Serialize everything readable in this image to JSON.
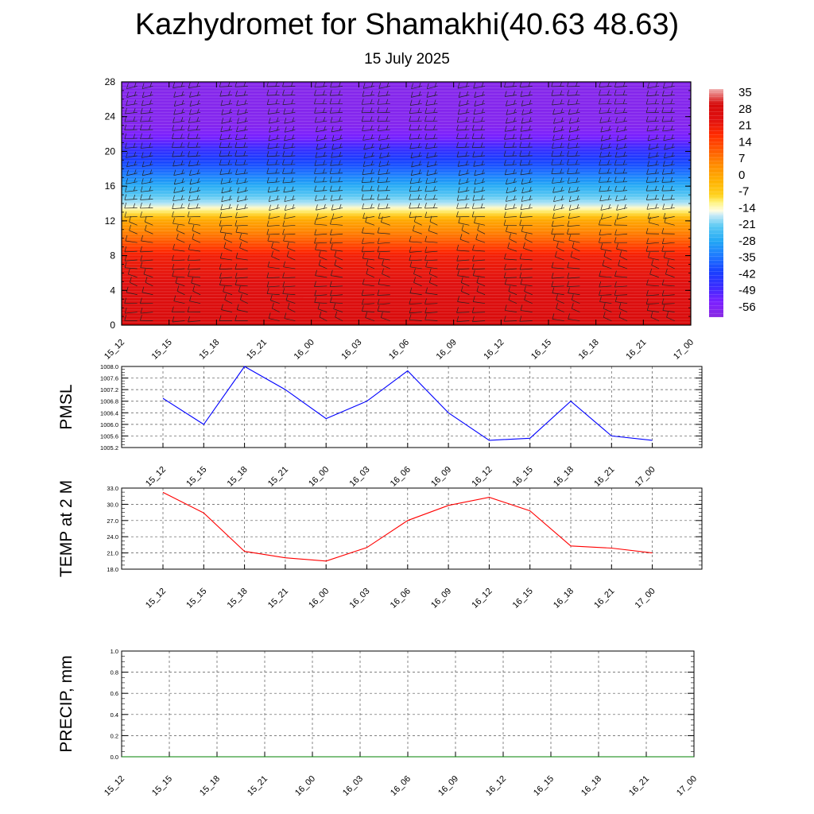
{
  "header": {
    "title": "Kazhydromet for Shamakhi(40.63 48.63)",
    "subtitle": "15 July 2025"
  },
  "chart_data": [
    {
      "id": "vertical-profile",
      "type": "heatmap",
      "title": "",
      "xlabel": "",
      "ylabel": "",
      "x_tick_labels": [
        "15_12",
        "15_15",
        "15_18",
        "15_21",
        "16_00",
        "16_03",
        "16_06",
        "16_09",
        "16_12",
        "16_15",
        "16_18",
        "16_21",
        "17_00"
      ],
      "y_ticks": [
        0,
        4,
        8,
        12,
        16,
        20,
        24,
        28
      ],
      "ylim": [
        0,
        28
      ],
      "colorbar_labels": [
        "35",
        "28",
        "21",
        "14",
        "7",
        "0",
        "-7",
        "-14",
        "-21",
        "-28",
        "-35",
        "-42",
        "-49",
        "-56"
      ],
      "colorbar_range": [
        -63,
        42
      ],
      "colorbar_stops": [
        {
          "v": -63,
          "c": "#8a2be2"
        },
        {
          "v": -56,
          "c": "#7b1fff"
        },
        {
          "v": -49,
          "c": "#3a2cff"
        },
        {
          "v": -42,
          "c": "#1840ff"
        },
        {
          "v": -35,
          "c": "#1e78ff"
        },
        {
          "v": -28,
          "c": "#22a8f5"
        },
        {
          "v": -21,
          "c": "#5ccaf3"
        },
        {
          "v": -16,
          "c": "#c8eaf7"
        },
        {
          "v": -14,
          "c": "#fffde0"
        },
        {
          "v": -10,
          "c": "#fff27a"
        },
        {
          "v": -7,
          "c": "#ffd21e"
        },
        {
          "v": 0,
          "c": "#ffb000"
        },
        {
          "v": 7,
          "c": "#ff8c00"
        },
        {
          "v": 14,
          "c": "#ff5a00"
        },
        {
          "v": 21,
          "c": "#ff2a00"
        },
        {
          "v": 28,
          "c": "#e01010"
        },
        {
          "v": 35,
          "c": "#d60a0a"
        },
        {
          "v": 42,
          "c": "#f0b0b0"
        }
      ],
      "temperature_profile": [
        {
          "level": 0,
          "t": 33
        },
        {
          "level": 4,
          "t": 29
        },
        {
          "level": 8,
          "t": 24
        },
        {
          "level": 10,
          "t": 12
        },
        {
          "level": 12,
          "t": 2
        },
        {
          "level": 13,
          "t": -9
        },
        {
          "level": 14,
          "t": -17
        },
        {
          "level": 16,
          "t": -27
        },
        {
          "level": 18,
          "t": -38
        },
        {
          "level": 20,
          "t": -47
        },
        {
          "level": 21.5,
          "t": -55
        },
        {
          "level": 23,
          "t": -60
        },
        {
          "level": 28,
          "t": -61
        }
      ]
    },
    {
      "id": "pmsl",
      "type": "line",
      "title": "",
      "ylabel": "PMSL",
      "categories": [
        "15_12",
        "15_15",
        "15_18",
        "15_21",
        "16_00",
        "16_03",
        "16_06",
        "16_09",
        "16_12",
        "16_15",
        "16_18",
        "16_21",
        "17_00"
      ],
      "values": [
        1006.9,
        1006.0,
        1008.0,
        1007.2,
        1006.2,
        1006.8,
        1007.85,
        1006.4,
        1005.45,
        1005.52,
        1006.8,
        1005.6,
        1005.45
      ],
      "ylim": [
        1005.2,
        1008.0
      ],
      "y_ticks": [
        "1008.0",
        "1007.6",
        "1007.2",
        "1006.8",
        "1006.4",
        "1006.0",
        "1005.6",
        "1005.2"
      ],
      "color": "#0000ff"
    },
    {
      "id": "temp2m",
      "type": "line",
      "title": "",
      "ylabel": "TEMP at 2 M",
      "categories": [
        "15_12",
        "15_15",
        "15_18",
        "15_21",
        "16_00",
        "16_03",
        "16_06",
        "16_09",
        "16_12",
        "16_15",
        "16_18",
        "16_21",
        "17_00"
      ],
      "values": [
        32.2,
        28.4,
        21.3,
        20.1,
        19.5,
        22.0,
        27.0,
        29.8,
        31.3,
        28.8,
        22.3,
        21.9,
        21.0
      ],
      "ylim": [
        18.0,
        33.0
      ],
      "y_ticks": [
        "33.0",
        "30.0",
        "27.0",
        "24.0",
        "21.0",
        "18.0"
      ],
      "color": "#ff0000"
    },
    {
      "id": "precip",
      "type": "line",
      "title": "",
      "ylabel": "PRECIP, mm",
      "categories": [
        "15_12",
        "15_15",
        "15_18",
        "15_21",
        "16_00",
        "16_03",
        "16_06",
        "16_09",
        "16_12",
        "16_15",
        "16_18",
        "16_21",
        "17_00"
      ],
      "values": [
        0,
        0,
        0,
        0,
        0,
        0,
        0,
        0,
        0,
        0,
        0,
        0,
        0
      ],
      "ylim": [
        0.0,
        1.0
      ],
      "y_ticks": [
        "1.0",
        "0.8",
        "0.6",
        "0.4",
        "0.2",
        "0.0"
      ],
      "color": "#008000"
    }
  ]
}
